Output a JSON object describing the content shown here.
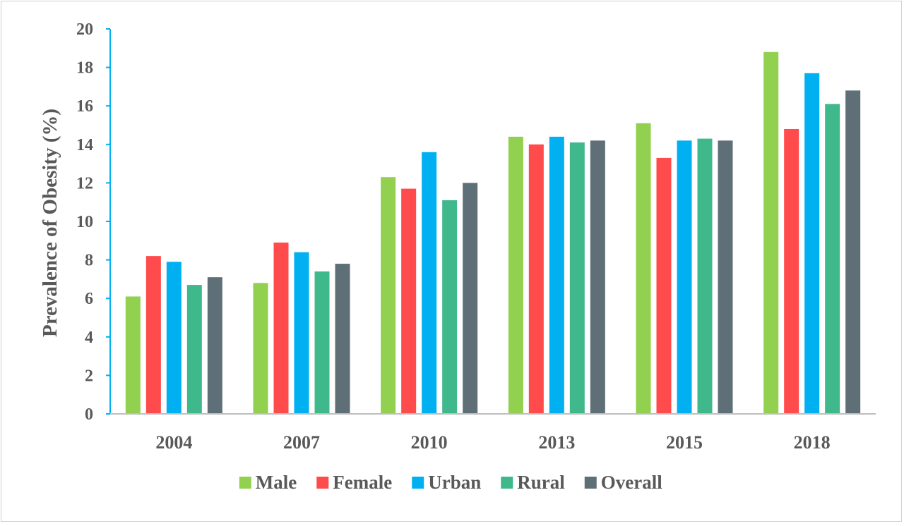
{
  "chart_data": {
    "type": "bar",
    "title": "",
    "xlabel": "",
    "ylabel": "Prevalence of Obesity (%)",
    "ylim": [
      0,
      20
    ],
    "yticks": [
      0,
      2,
      4,
      6,
      8,
      10,
      12,
      14,
      16,
      18,
      20
    ],
    "categories": [
      "2004",
      "2007",
      "2010",
      "2013",
      "2015",
      "2018"
    ],
    "series": [
      {
        "name": "Male",
        "color": "#92d050",
        "values": [
          6.1,
          6.8,
          12.3,
          14.4,
          15.1,
          18.8
        ]
      },
      {
        "name": "Female",
        "color": "#ff4b4b",
        "values": [
          8.2,
          8.9,
          11.7,
          14.0,
          13.3,
          14.8
        ]
      },
      {
        "name": "Urban",
        "color": "#00b0f0",
        "values": [
          7.9,
          8.4,
          13.6,
          14.4,
          14.2,
          17.7
        ]
      },
      {
        "name": "Rural",
        "color": "#3fb88c",
        "values": [
          6.7,
          7.4,
          11.1,
          14.1,
          14.3,
          16.1
        ]
      },
      {
        "name": "Overall",
        "color": "#5f6f78",
        "values": [
          7.1,
          7.8,
          12.0,
          14.2,
          14.2,
          16.8
        ]
      }
    ],
    "legend_position": "bottom",
    "grid": false,
    "axis_colors": {
      "y_axis": "#00b0f0",
      "x_axis": "#bfbfbf"
    }
  }
}
